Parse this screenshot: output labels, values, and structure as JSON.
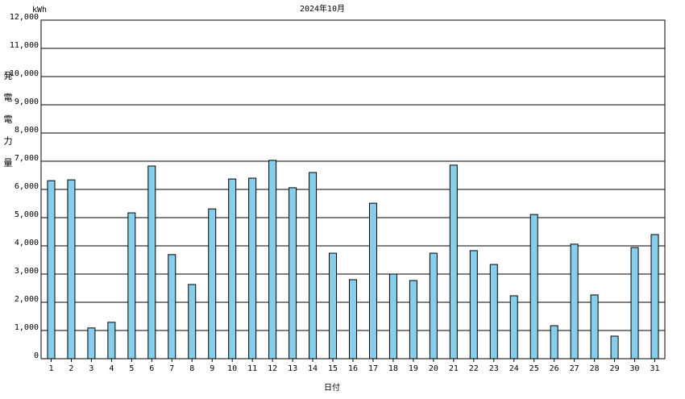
{
  "chart_data": {
    "type": "bar",
    "title": "2024年10月",
    "unit": "kWh",
    "y_label": "発電電力量",
    "x_label": "日付",
    "categories": [
      "1",
      "2",
      "3",
      "4",
      "5",
      "6",
      "7",
      "8",
      "9",
      "10",
      "11",
      "12",
      "13",
      "14",
      "15",
      "16",
      "17",
      "18",
      "19",
      "20",
      "21",
      "22",
      "23",
      "24",
      "25",
      "26",
      "27",
      "28",
      "29",
      "30",
      "31"
    ],
    "values": [
      6310,
      6340,
      1090,
      1290,
      5170,
      6830,
      3690,
      2630,
      5310,
      6370,
      6400,
      7030,
      6060,
      6600,
      3740,
      2800,
      5510,
      3000,
      2770,
      3740,
      6860,
      3830,
      3340,
      2230,
      5110,
      1170,
      4060,
      2260,
      800,
      3940,
      4400
    ],
    "color": "#87ceeb",
    "ylim": [
      0,
      12000
    ],
    "yticks": [
      0,
      {
        "value": 1000,
        "label": "1,000"
      },
      {
        "value": 2000,
        "label": "2,000"
      },
      {
        "value": 3000,
        "label": "3,000"
      },
      {
        "value": 4000,
        "label": "4,000"
      },
      {
        "value": 5000,
        "label": "5,000"
      },
      {
        "value": 6000,
        "label": "6,000"
      },
      {
        "value": 7000,
        "label": "7,000"
      },
      {
        "value": 8000,
        "label": "8,000"
      },
      {
        "value": 9000,
        "label": "9,000"
      },
      {
        "value": 10000,
        "label": "10,000"
      },
      {
        "value": 11000,
        "label": "11,000"
      },
      {
        "value": 12000,
        "label": "12,000"
      }
    ],
    "grid": true
  }
}
